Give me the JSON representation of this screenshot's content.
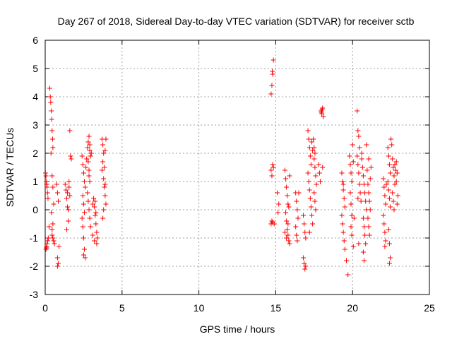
{
  "chart_data": {
    "type": "scatter",
    "title": "Day 267 of 2018, Sidereal Day-to-day VTEC variation (SDTVAR) for receiver sctb",
    "xlabel": "GPS time / hours",
    "ylabel": "SDTVAR / TECUs",
    "xlim": [
      0,
      25
    ],
    "ylim": [
      -3,
      6
    ],
    "xticks": [
      "0",
      "5",
      "10",
      "15",
      "20",
      "25"
    ],
    "yticks": [
      "-3",
      "-2",
      "-1",
      "0",
      "1",
      "2",
      "3",
      "4",
      "5",
      "6"
    ],
    "grid": true,
    "marker": "+",
    "color": "#ff0000",
    "series": [
      {
        "name": "SDTVAR",
        "points": [
          [
            0.02,
            1.3
          ],
          [
            0.05,
            1.2
          ],
          [
            0.08,
            1.0
          ],
          [
            0.1,
            0.9
          ],
          [
            0.12,
            0.8
          ],
          [
            0.15,
            0.6
          ],
          [
            0.18,
            0.4
          ],
          [
            0.05,
            -1.4
          ],
          [
            0.1,
            -1.3
          ],
          [
            0.15,
            -1.1
          ],
          [
            0.2,
            -1.0
          ],
          [
            0.25,
            -0.6
          ],
          [
            0.08,
            -1.35
          ],
          [
            0.12,
            -1.2
          ],
          [
            0.3,
            4.3
          ],
          [
            0.33,
            4.0
          ],
          [
            0.36,
            3.8
          ],
          [
            0.4,
            3.5
          ],
          [
            0.42,
            3.2
          ],
          [
            0.45,
            2.8
          ],
          [
            0.48,
            2.5
          ],
          [
            0.5,
            2.2
          ],
          [
            0.38,
            2.0
          ],
          [
            0.45,
            1.2
          ],
          [
            0.5,
            0.8
          ],
          [
            0.55,
            0.2
          ],
          [
            0.4,
            -0.1
          ],
          [
            0.45,
            -0.9
          ],
          [
            0.5,
            -1.0
          ],
          [
            0.55,
            -1.1
          ],
          [
            0.6,
            -1.2
          ],
          [
            0.45,
            -0.7
          ],
          [
            0.5,
            -0.5
          ],
          [
            0.75,
            0.9
          ],
          [
            0.8,
            0.6
          ],
          [
            0.85,
            0.3
          ],
          [
            0.9,
            -1.3
          ],
          [
            0.8,
            -1.7
          ],
          [
            0.85,
            -1.9
          ],
          [
            0.8,
            -2.0
          ],
          [
            1.3,
            0.9
          ],
          [
            1.35,
            0.7
          ],
          [
            1.4,
            0.4
          ],
          [
            1.45,
            0.1
          ],
          [
            1.5,
            -0.4
          ],
          [
            1.4,
            -0.7
          ],
          [
            1.55,
            0.8
          ],
          [
            1.6,
            0.5
          ],
          [
            1.5,
            0.0
          ],
          [
            1.65,
            1.9
          ],
          [
            1.6,
            2.8
          ],
          [
            1.7,
            1.8
          ],
          [
            1.55,
            1.0
          ],
          [
            1.45,
            0.6
          ],
          [
            2.4,
            1.9
          ],
          [
            2.45,
            1.6
          ],
          [
            2.5,
            1.3
          ],
          [
            2.55,
            1.0
          ],
          [
            2.45,
            0.5
          ],
          [
            2.5,
            0.2
          ],
          [
            2.55,
            -0.1
          ],
          [
            2.4,
            -0.3
          ],
          [
            2.45,
            -0.6
          ],
          [
            2.5,
            -1.0
          ],
          [
            2.55,
            -1.4
          ],
          [
            2.5,
            -1.6
          ],
          [
            2.6,
            -1.7
          ],
          [
            2.6,
            0.8
          ],
          [
            2.65,
            1.5
          ],
          [
            2.7,
            1.8
          ],
          [
            2.75,
            2.2
          ],
          [
            2.8,
            2.4
          ],
          [
            2.85,
            2.6
          ],
          [
            2.9,
            2.1
          ],
          [
            2.95,
            1.9
          ],
          [
            2.8,
            1.7
          ],
          [
            2.85,
            1.4
          ],
          [
            2.9,
            1.0
          ],
          [
            2.75,
            0.6
          ],
          [
            2.8,
            0.3
          ],
          [
            2.85,
            0.0
          ],
          [
            2.9,
            -0.3
          ],
          [
            2.95,
            -0.6
          ],
          [
            3.0,
            2.0
          ],
          [
            2.9,
            2.3
          ],
          [
            2.85,
            1.2
          ],
          [
            3.1,
            0.2
          ],
          [
            3.15,
            0.4
          ],
          [
            3.2,
            0.1
          ],
          [
            3.25,
            -0.2
          ],
          [
            3.3,
            -0.5
          ],
          [
            3.35,
            -0.8
          ],
          [
            3.4,
            -1.0
          ],
          [
            3.35,
            -1.2
          ],
          [
            3.2,
            -1.1
          ],
          [
            3.1,
            -0.9
          ],
          [
            3.25,
            0.3
          ],
          [
            3.3,
            -0.1
          ],
          [
            3.7,
            2.5
          ],
          [
            3.75,
            2.3
          ],
          [
            3.8,
            2.0
          ],
          [
            3.75,
            1.7
          ],
          [
            3.7,
            1.4
          ],
          [
            3.8,
            1.1
          ],
          [
            3.85,
            0.8
          ],
          [
            3.9,
            0.5
          ],
          [
            3.95,
            0.2
          ],
          [
            3.8,
            0.0
          ],
          [
            3.75,
            -0.3
          ],
          [
            3.85,
            1.5
          ],
          [
            3.9,
            2.1
          ],
          [
            3.95,
            2.5
          ],
          [
            3.9,
            0.9
          ],
          [
            14.7,
            4.1
          ],
          [
            14.75,
            4.4
          ],
          [
            14.8,
            4.8
          ],
          [
            14.85,
            5.3
          ],
          [
            14.78,
            4.9
          ],
          [
            14.7,
            1.4
          ],
          [
            14.75,
            1.2
          ],
          [
            14.8,
            1.6
          ],
          [
            14.85,
            1.5
          ],
          [
            14.7,
            -0.5
          ],
          [
            14.75,
            -0.4
          ],
          [
            14.8,
            -0.45
          ],
          [
            14.9,
            -0.5
          ],
          [
            15.1,
            0.6
          ],
          [
            15.2,
            0.2
          ],
          [
            15.15,
            -0.1
          ],
          [
            15.6,
            1.4
          ],
          [
            15.65,
            1.1
          ],
          [
            15.7,
            0.8
          ],
          [
            15.75,
            0.5
          ],
          [
            15.8,
            0.2
          ],
          [
            15.65,
            -0.1
          ],
          [
            15.7,
            -0.4
          ],
          [
            15.75,
            -0.7
          ],
          [
            15.8,
            -0.9
          ],
          [
            15.85,
            -1.1
          ],
          [
            15.9,
            -1.2
          ],
          [
            15.6,
            -0.8
          ],
          [
            15.7,
            -1.0
          ],
          [
            15.8,
            -0.5
          ],
          [
            15.85,
            0.1
          ],
          [
            15.9,
            1.2
          ],
          [
            16.3,
            0.6
          ],
          [
            16.35,
            0.3
          ],
          [
            16.4,
            0.0
          ],
          [
            16.45,
            -0.3
          ],
          [
            16.3,
            -0.6
          ],
          [
            16.35,
            -0.9
          ],
          [
            16.4,
            -1.1
          ],
          [
            16.5,
            0.6
          ],
          [
            16.8,
            -0.2
          ],
          [
            16.85,
            -0.5
          ],
          [
            16.9,
            -0.8
          ],
          [
            16.95,
            -1.0
          ],
          [
            16.8,
            -1.7
          ],
          [
            16.85,
            -1.9
          ],
          [
            16.9,
            -2.1
          ],
          [
            16.95,
            -2.0
          ],
          [
            17.1,
            2.8
          ],
          [
            17.15,
            2.5
          ],
          [
            17.2,
            2.2
          ],
          [
            17.25,
            1.9
          ],
          [
            17.3,
            1.6
          ],
          [
            17.1,
            1.3
          ],
          [
            17.15,
            1.0
          ],
          [
            17.2,
            0.7
          ],
          [
            17.25,
            0.4
          ],
          [
            17.3,
            0.1
          ],
          [
            17.35,
            -0.2
          ],
          [
            17.4,
            -0.5
          ],
          [
            17.2,
            -0.8
          ],
          [
            17.35,
            2.4
          ],
          [
            17.4,
            2.1
          ],
          [
            17.5,
            1.8
          ],
          [
            17.55,
            1.5
          ],
          [
            17.6,
            1.2
          ],
          [
            17.65,
            0.9
          ],
          [
            17.5,
            0.6
          ],
          [
            17.55,
            0.3
          ],
          [
            17.6,
            0.0
          ],
          [
            17.5,
            2.2
          ],
          [
            17.45,
            2.5
          ],
          [
            17.55,
            2.0
          ],
          [
            17.8,
            1.6
          ],
          [
            17.85,
            1.3
          ],
          [
            17.9,
            1.0
          ],
          [
            17.95,
            3.5
          ],
          [
            18.0,
            3.4
          ],
          [
            18.05,
            3.6
          ],
          [
            18.1,
            3.3
          ],
          [
            17.98,
            3.45
          ],
          [
            18.02,
            3.55
          ],
          [
            18.05,
            1.5
          ],
          [
            19.3,
            1.3
          ],
          [
            19.35,
            1.0
          ],
          [
            19.4,
            0.7
          ],
          [
            19.45,
            0.4
          ],
          [
            19.5,
            0.1
          ],
          [
            19.3,
            -0.2
          ],
          [
            19.35,
            -0.5
          ],
          [
            19.4,
            -0.8
          ],
          [
            19.45,
            -1.1
          ],
          [
            19.5,
            -1.4
          ],
          [
            19.6,
            -1.8
          ],
          [
            19.7,
            -2.3
          ],
          [
            19.4,
            0.9
          ],
          [
            19.8,
            1.9
          ],
          [
            19.85,
            1.6
          ],
          [
            19.9,
            1.3
          ],
          [
            19.95,
            1.0
          ],
          [
            19.85,
            0.6
          ],
          [
            19.9,
            0.2
          ],
          [
            19.95,
            -0.2
          ],
          [
            19.9,
            -0.6
          ],
          [
            19.95,
            -0.9
          ],
          [
            20.05,
            -1.3
          ],
          [
            20.1,
            -0.3
          ],
          [
            20.0,
            2.3
          ],
          [
            20.05,
            1.7
          ],
          [
            20.3,
            3.5
          ],
          [
            20.35,
            2.8
          ],
          [
            20.4,
            2.6
          ],
          [
            20.45,
            2.2
          ],
          [
            20.3,
            1.9
          ],
          [
            20.35,
            1.6
          ],
          [
            20.4,
            1.3
          ],
          [
            20.45,
            0.9
          ],
          [
            20.5,
            0.6
          ],
          [
            20.55,
            0.3
          ],
          [
            20.6,
            2.0
          ],
          [
            20.35,
            0.4
          ],
          [
            20.4,
            -1.2
          ],
          [
            20.6,
            1.8
          ],
          [
            20.65,
            1.5
          ],
          [
            20.7,
            1.2
          ],
          [
            20.75,
            0.9
          ],
          [
            20.8,
            0.6
          ],
          [
            20.85,
            0.3
          ],
          [
            20.9,
            0.0
          ],
          [
            20.7,
            -0.3
          ],
          [
            20.75,
            -0.6
          ],
          [
            20.8,
            -0.9
          ],
          [
            20.85,
            -1.2
          ],
          [
            20.7,
            -1.5
          ],
          [
            20.75,
            -1.8
          ],
          [
            20.9,
            2.3
          ],
          [
            20.95,
            1.4
          ],
          [
            21.0,
            0.9
          ],
          [
            21.05,
            0.6
          ],
          [
            21.1,
            0.3
          ],
          [
            21.15,
            0.0
          ],
          [
            21.0,
            -0.3
          ],
          [
            21.05,
            -0.6
          ],
          [
            21.1,
            -0.9
          ],
          [
            21.15,
            1.1
          ],
          [
            21.2,
            1.5
          ],
          [
            21.05,
            1.8
          ],
          [
            22.0,
            1.1
          ],
          [
            22.05,
            0.8
          ],
          [
            22.1,
            0.5
          ],
          [
            22.15,
            0.2
          ],
          [
            22.0,
            -0.2
          ],
          [
            22.05,
            -0.5
          ],
          [
            22.1,
            -0.8
          ],
          [
            22.15,
            -1.1
          ],
          [
            22.1,
            -1.3
          ],
          [
            22.2,
            0.9
          ],
          [
            22.3,
            2.2
          ],
          [
            22.35,
            1.9
          ],
          [
            22.4,
            1.6
          ],
          [
            22.45,
            1.3
          ],
          [
            22.3,
            1.0
          ],
          [
            22.35,
            0.7
          ],
          [
            22.4,
            0.4
          ],
          [
            22.45,
            0.1
          ],
          [
            22.35,
            -0.7
          ],
          [
            22.4,
            -1.2
          ],
          [
            22.45,
            -1.7
          ],
          [
            22.4,
            -1.9
          ],
          [
            22.5,
            2.5
          ],
          [
            22.55,
            2.3
          ],
          [
            22.6,
            1.8
          ],
          [
            22.65,
            1.5
          ],
          [
            22.7,
            1.2
          ],
          [
            22.75,
            0.9
          ],
          [
            22.6,
            0.6
          ],
          [
            22.65,
            0.3
          ],
          [
            22.7,
            0.0
          ],
          [
            22.75,
            1.6
          ],
          [
            22.8,
            1.4
          ],
          [
            22.85,
            1.7
          ],
          [
            22.9,
            1.3
          ],
          [
            22.95,
            0.5
          ],
          [
            22.9,
            0.2
          ],
          [
            22.85,
            1.0
          ]
        ]
      }
    ]
  }
}
